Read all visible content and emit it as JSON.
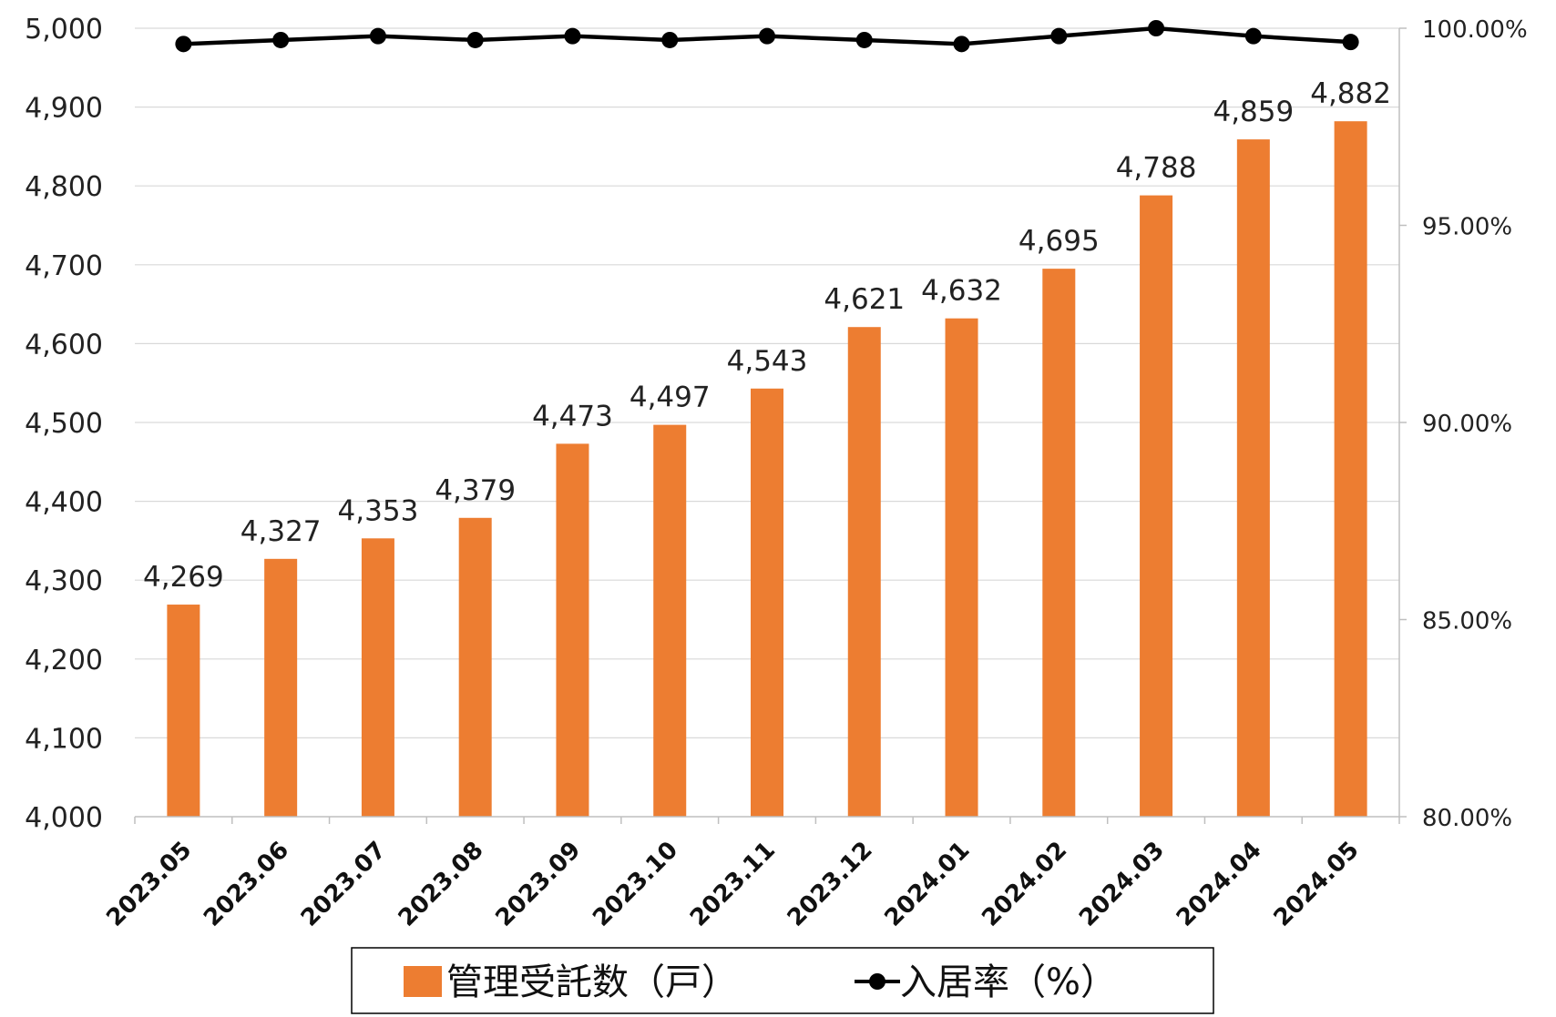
{
  "chart_data": {
    "type": "bar",
    "categories": [
      "2023.05",
      "2023.06",
      "2023.07",
      "2023.08",
      "2023.09",
      "2023.10",
      "2023.11",
      "2023.12",
      "2024.01",
      "2024.02",
      "2024.03",
      "2024.04",
      "2024.05"
    ],
    "series": [
      {
        "name": "管理受託数（戸）",
        "type": "bar",
        "axis": "left",
        "color": "#ED7D31",
        "values": [
          4269,
          4327,
          4353,
          4379,
          4473,
          4497,
          4543,
          4621,
          4632,
          4695,
          4788,
          4859,
          4882
        ],
        "labels": [
          "4,269",
          "4,327",
          "4,353",
          "4,379",
          "4,473",
          "4,497",
          "4,543",
          "4,621",
          "4,632",
          "4,695",
          "4,788",
          "4,859",
          "4,882"
        ]
      },
      {
        "name": "入居率（%）",
        "type": "line",
        "axis": "right",
        "color": "#000000",
        "values": [
          99.6,
          99.7,
          99.8,
          99.7,
          99.8,
          99.7,
          99.8,
          99.7,
          99.6,
          99.8,
          100.0,
          99.8,
          99.65
        ]
      }
    ],
    "y_left": {
      "ylim": [
        4000,
        5000
      ],
      "ticks": [
        4000,
        4100,
        4200,
        4300,
        4400,
        4500,
        4600,
        4700,
        4800,
        4900,
        5000
      ],
      "tick_labels": [
        "4,000",
        "4,100",
        "4,200",
        "4,300",
        "4,400",
        "4,500",
        "4,600",
        "4,700",
        "4,800",
        "4,900",
        "5,000"
      ]
    },
    "y_right": {
      "ylim": [
        80,
        100
      ],
      "ticks": [
        80,
        85,
        90,
        95,
        100
      ],
      "tick_labels": [
        "80.00%",
        "85.00%",
        "90.00%",
        "95.00%",
        "100.00%"
      ]
    },
    "grid": true,
    "legend_position": "bottom"
  },
  "legend": {
    "items": [
      {
        "label": "管理受託数（戸）",
        "color": "#ED7D31",
        "kind": "bar"
      },
      {
        "label": "入居率（%）",
        "color": "#000000",
        "kind": "line"
      }
    ]
  }
}
